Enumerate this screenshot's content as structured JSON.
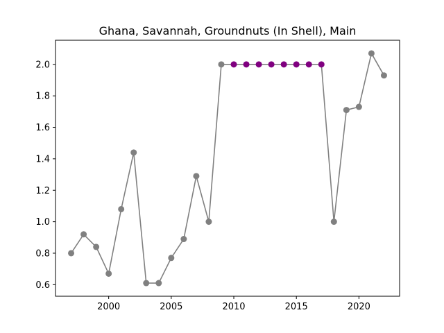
{
  "chart_data": {
    "type": "line",
    "title": "Ghana, Savannah, Groundnuts (In Shell), Main",
    "xlabel": "",
    "ylabel": "",
    "xlim": [
      1995.75,
      2023.25
    ],
    "ylim": [
      0.5265,
      2.1535
    ],
    "xticks": [
      2000,
      2005,
      2010,
      2015,
      2020
    ],
    "yticks": [
      0.6,
      0.8,
      1.0,
      1.2,
      1.4,
      1.6,
      1.8,
      2.0
    ],
    "grid": false,
    "series": [
      {
        "line_color": "#808080",
        "default_marker_color": "#808080",
        "highlight_marker_color": "#800080",
        "x": [
          1997,
          1998,
          1999,
          2000,
          2001,
          2002,
          2003,
          2004,
          2005,
          2006,
          2007,
          2008,
          2009,
          2010,
          2011,
          2012,
          2013,
          2014,
          2015,
          2016,
          2017,
          2018,
          2019,
          2020,
          2021,
          2022
        ],
        "y": [
          0.8,
          0.92,
          0.84,
          0.67,
          1.08,
          1.44,
          0.61,
          0.61,
          0.77,
          0.89,
          1.29,
          1.0,
          2.0,
          2.0,
          2.0,
          2.0,
          2.0,
          2.0,
          2.0,
          2.0,
          2.0,
          1.0,
          1.71,
          1.73,
          2.07,
          1.93
        ],
        "highlighted": [
          false,
          false,
          false,
          false,
          false,
          false,
          false,
          false,
          false,
          false,
          false,
          false,
          false,
          true,
          true,
          true,
          true,
          true,
          true,
          true,
          true,
          false,
          false,
          false,
          false,
          false
        ]
      }
    ]
  }
}
